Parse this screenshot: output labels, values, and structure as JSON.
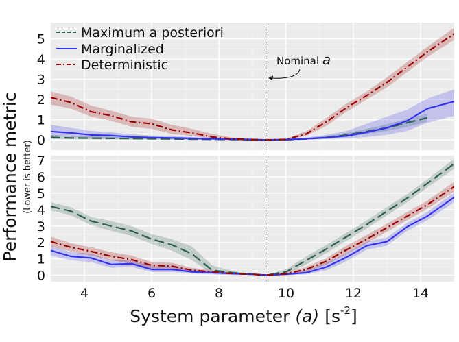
{
  "figure": {
    "ylabel_main": "Performance metric",
    "ylabel_sub": "(Lower is better)",
    "xlabel_main": "System parameter",
    "xlabel_var": "(a)",
    "xlabel_unit_open": "[s",
    "xlabel_unit_exp": "-2",
    "xlabel_unit_close": "]",
    "annotation_text": "Nominal",
    "annotation_var": "a",
    "nominal_a": 9.4,
    "legend": [
      {
        "label": "Maximum a posteriori",
        "color": "#2e5e4e"
      },
      {
        "label": "Marginalized",
        "color": "#3333ee"
      },
      {
        "label": "Deterministic",
        "color": "#990000"
      }
    ],
    "panel_bg": "#ebebeb"
  },
  "chart_data": [
    {
      "type": "line",
      "panel": "top",
      "xlim": [
        3,
        15
      ],
      "ylim": [
        -0.5,
        5.8
      ],
      "xticks": [
        4,
        6,
        8,
        10,
        12,
        14
      ],
      "yticks": [
        0,
        1,
        2,
        3,
        4,
        5
      ],
      "grid": true,
      "legend_position": "top-left",
      "series": [
        {
          "name": "Maximum a posteriori",
          "color": "#2e5e4e",
          "dash": "dashed",
          "x": [
            3,
            3.6,
            4.2,
            4.8,
            5.4,
            6,
            6.6,
            7.2,
            7.8,
            8.4,
            9,
            9.4,
            10,
            10.6,
            11.2,
            11.8,
            12.4,
            13,
            13.6,
            14.2
          ],
          "y": [
            0.13,
            0.1,
            0.09,
            0.08,
            0.07,
            0.06,
            0.05,
            0.04,
            0.03,
            0.02,
            0.01,
            0.0,
            0.01,
            0.05,
            0.12,
            0.25,
            0.42,
            0.6,
            0.85,
            1.1
          ],
          "lower": [
            0.05,
            0.03,
            0.03,
            0.02,
            0.02,
            0.02,
            0.02,
            0.01,
            0.01,
            0.0,
            0.0,
            0.0,
            0.0,
            0.02,
            0.06,
            0.15,
            0.3,
            0.45,
            0.65,
            0.9
          ],
          "upper": [
            0.25,
            0.2,
            0.18,
            0.16,
            0.14,
            0.12,
            0.1,
            0.08,
            0.06,
            0.04,
            0.02,
            0.0,
            0.03,
            0.1,
            0.2,
            0.35,
            0.55,
            0.78,
            1.05,
            1.3
          ]
        },
        {
          "name": "Marginalized",
          "color": "#3333ee",
          "dash": "solid",
          "x": [
            3,
            3.6,
            4.2,
            4.8,
            5.4,
            6,
            6.6,
            7.2,
            7.8,
            8.4,
            9,
            9.4,
            10,
            10.6,
            11.2,
            11.8,
            12.4,
            13,
            13.6,
            14.2,
            15
          ],
          "y": [
            0.42,
            0.35,
            0.25,
            0.22,
            0.15,
            0.12,
            0.1,
            0.08,
            0.06,
            0.04,
            0.02,
            0.0,
            0.02,
            0.06,
            0.12,
            0.2,
            0.38,
            0.6,
            0.95,
            1.55,
            1.9
          ],
          "lower": [
            0.2,
            0.15,
            0.1,
            0.08,
            0.05,
            0.04,
            0.03,
            0.02,
            0.01,
            0.0,
            0.0,
            0.0,
            0.0,
            0.02,
            0.04,
            0.08,
            0.15,
            0.25,
            0.45,
            0.85,
            1.2
          ],
          "upper": [
            0.75,
            0.6,
            0.45,
            0.38,
            0.28,
            0.22,
            0.18,
            0.14,
            0.1,
            0.07,
            0.04,
            0.0,
            0.05,
            0.12,
            0.25,
            0.45,
            0.8,
            1.15,
            1.5,
            2.05,
            2.5
          ]
        },
        {
          "name": "Deterministic",
          "color": "#990000",
          "dash": "dashdot",
          "x": [
            3,
            3.6,
            4.2,
            4.8,
            5.4,
            6,
            6.6,
            7.2,
            7.8,
            8.4,
            9,
            9.4,
            10,
            10.6,
            11.2,
            11.8,
            12.4,
            13,
            13.6,
            14.2,
            15
          ],
          "y": [
            2.1,
            1.85,
            1.4,
            1.2,
            0.9,
            0.8,
            0.5,
            0.35,
            0.15,
            0.05,
            0.02,
            0.0,
            0.03,
            0.3,
            0.9,
            1.6,
            2.2,
            2.85,
            3.6,
            4.35,
            5.25
          ],
          "lower": [
            1.75,
            1.55,
            1.15,
            0.95,
            0.65,
            0.55,
            0.3,
            0.2,
            0.05,
            0.0,
            0.0,
            0.0,
            0.0,
            0.2,
            0.7,
            1.4,
            2.0,
            2.6,
            3.35,
            4.1,
            4.95
          ],
          "upper": [
            2.4,
            2.15,
            1.7,
            1.45,
            1.15,
            1.05,
            0.75,
            0.55,
            0.3,
            0.12,
            0.05,
            0.0,
            0.07,
            0.42,
            1.1,
            1.8,
            2.4,
            3.1,
            3.85,
            4.6,
            5.55
          ]
        }
      ]
    },
    {
      "type": "line",
      "panel": "bottom",
      "xlim": [
        3,
        15
      ],
      "ylim": [
        -0.4,
        7.3
      ],
      "xticks": [
        4,
        6,
        8,
        10,
        12,
        14
      ],
      "yticks": [
        0,
        1,
        2,
        3,
        4,
        5,
        6,
        7
      ],
      "xticklabels": [
        "4",
        "6",
        "8",
        "10",
        "12",
        "14"
      ],
      "grid": true,
      "series": [
        {
          "name": "Maximum a posteriori",
          "color": "#2e5e4e",
          "dash": "dashed",
          "x": [
            3,
            3.6,
            4.2,
            4.8,
            5.4,
            6,
            6.6,
            7.2,
            7.8,
            8.4,
            9,
            9.4,
            10,
            10.6,
            11.2,
            11.8,
            12.4,
            13,
            13.6,
            14.2,
            15
          ],
          "y": [
            4.2,
            3.9,
            3.3,
            3.0,
            2.7,
            2.2,
            1.85,
            1.3,
            0.3,
            0.15,
            0.05,
            0.0,
            0.2,
            0.9,
            1.6,
            2.35,
            3.1,
            3.9,
            4.7,
            5.6,
            6.8
          ],
          "lower": [
            3.95,
            3.65,
            3.05,
            2.7,
            2.4,
            1.9,
            1.5,
            0.9,
            0.1,
            0.05,
            0.0,
            0.0,
            0.05,
            0.65,
            1.35,
            2.1,
            2.85,
            3.65,
            4.45,
            5.35,
            6.5
          ],
          "upper": [
            4.45,
            4.15,
            3.55,
            3.3,
            3.0,
            2.5,
            2.2,
            1.75,
            0.6,
            0.25,
            0.1,
            0.0,
            0.35,
            1.15,
            1.85,
            2.6,
            3.35,
            4.15,
            4.95,
            5.85,
            7.1
          ]
        },
        {
          "name": "Marginalized",
          "color": "#3333ee",
          "dash": "solid",
          "x": [
            3,
            3.6,
            4.2,
            4.8,
            5.4,
            6,
            6.6,
            7.2,
            7.8,
            8.4,
            9,
            9.4,
            10,
            10.6,
            11.2,
            11.8,
            12.4,
            13,
            13.6,
            14.2,
            15
          ],
          "y": [
            1.5,
            1.15,
            1.05,
            0.65,
            0.7,
            0.35,
            0.35,
            0.2,
            0.15,
            0.1,
            0.05,
            0.0,
            0.05,
            0.15,
            0.5,
            1.1,
            1.8,
            2.05,
            2.95,
            3.6,
            4.75
          ],
          "lower": [
            1.2,
            0.9,
            0.8,
            0.45,
            0.5,
            0.2,
            0.2,
            0.1,
            0.05,
            0.0,
            0.0,
            0.0,
            0.0,
            0.05,
            0.3,
            0.85,
            1.55,
            1.8,
            2.7,
            3.35,
            4.45
          ],
          "upper": [
            1.8,
            1.4,
            1.3,
            0.9,
            0.9,
            0.55,
            0.55,
            0.35,
            0.25,
            0.15,
            0.08,
            0.0,
            0.1,
            0.3,
            0.75,
            1.35,
            2.05,
            2.3,
            3.2,
            3.85,
            5.05
          ]
        },
        {
          "name": "Deterministic",
          "color": "#990000",
          "dash": "dashdot",
          "x": [
            3,
            3.6,
            4.2,
            4.8,
            5.4,
            6,
            6.6,
            7.2,
            7.8,
            8.4,
            9,
            9.4,
            10,
            10.6,
            11.2,
            11.8,
            12.4,
            13,
            13.6,
            14.2,
            15
          ],
          "y": [
            2.05,
            1.7,
            1.45,
            1.15,
            0.95,
            0.6,
            0.55,
            0.3,
            0.2,
            0.1,
            0.05,
            0.0,
            0.08,
            0.35,
            0.85,
            1.55,
            2.2,
            2.9,
            3.6,
            4.3,
            5.4
          ],
          "lower": [
            1.75,
            1.45,
            1.2,
            0.9,
            0.7,
            0.4,
            0.35,
            0.15,
            0.1,
            0.05,
            0.0,
            0.0,
            0.02,
            0.2,
            0.65,
            1.3,
            1.95,
            2.65,
            3.35,
            4.05,
            5.1
          ],
          "upper": [
            2.35,
            1.95,
            1.7,
            1.4,
            1.2,
            0.8,
            0.75,
            0.45,
            0.3,
            0.15,
            0.08,
            0.0,
            0.15,
            0.5,
            1.05,
            1.8,
            2.45,
            3.15,
            3.85,
            4.55,
            5.7
          ]
        }
      ]
    }
  ]
}
